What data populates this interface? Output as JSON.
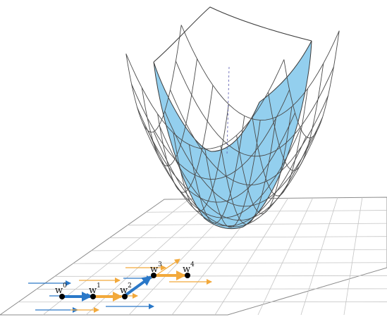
{
  "colors": {
    "background": "#ffffff",
    "plane_fill": "#ffffff",
    "plane_grid": "#bdbdbd",
    "plane_border": "#8c8c8c",
    "surface_front": "#93cfee",
    "surface_back": "#ffffff",
    "surface_line": "#4a4a4a",
    "blue": "#2a78c8",
    "orange": "#f2a93b",
    "point": "#000000"
  },
  "icons": {
    "iterate": "filled-black-dot",
    "step": "arrow"
  },
  "iterates": [
    {
      "base": "w",
      "sup": "0"
    },
    {
      "base": "w",
      "sup": "1"
    },
    {
      "base": "w",
      "sup": "2"
    },
    {
      "base": "w",
      "sup": "3"
    },
    {
      "base": "w",
      "sup": "4"
    }
  ]
}
